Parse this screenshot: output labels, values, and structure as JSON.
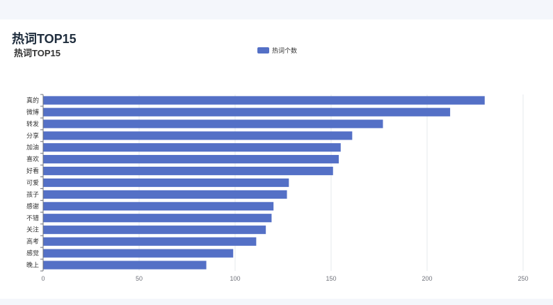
{
  "page": {
    "title": "热词TOP15"
  },
  "chart_data": {
    "type": "bar",
    "orientation": "horizontal",
    "title": "热词TOP15",
    "legend": [
      "热词个数"
    ],
    "legend_placement": "top-center",
    "bar_color": "#5470c6",
    "xlabel": "",
    "ylabel": "",
    "xlim": [
      0,
      250
    ],
    "x_ticks": [
      0,
      50,
      100,
      150,
      200,
      250
    ],
    "grid": true,
    "categories": [
      "真的",
      "微博",
      "转发",
      "分享",
      "加油",
      "喜欢",
      "好看",
      "可爱",
      "孩子",
      "感谢",
      "不错",
      "关注",
      "高考",
      "感觉",
      "晚上"
    ],
    "series": [
      {
        "name": "热词个数",
        "values": [
          230,
          212,
          177,
          161,
          155,
          154,
          151,
          128,
          127,
          120,
          119,
          116,
          111,
          99,
          85
        ]
      }
    ]
  }
}
